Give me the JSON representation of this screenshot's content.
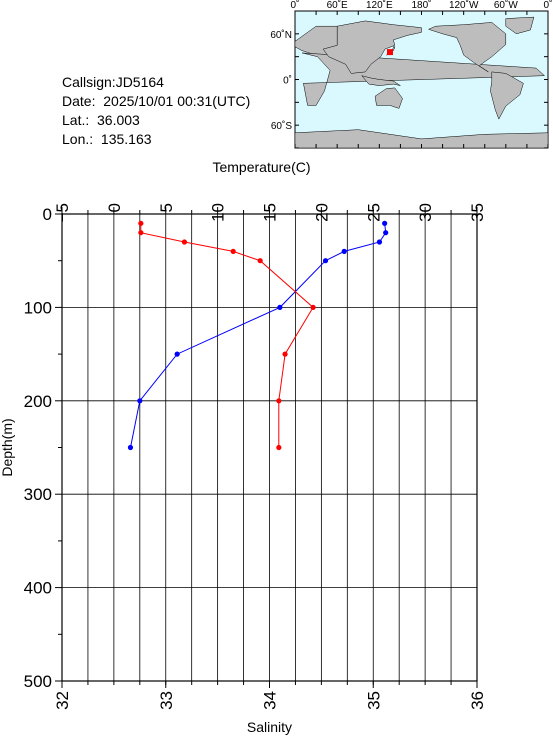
{
  "station": {
    "callsign": "Callsign:JD5164",
    "date": "Date:  2025/10/01 00:31(UTC)",
    "lat": "Lat.:  36.003",
    "lon": "Lon.:  135.163"
  },
  "map": {
    "top_labels": [
      "0˚",
      "60˚E",
      "120˚E",
      "180˚",
      "120˚W",
      "60˚W",
      "0˚"
    ],
    "side_labels": [
      "60˚N",
      "0˚",
      "60˚S"
    ],
    "ocean_color": "#d9f9ff",
    "land_color": "#bdbdbd",
    "marker_color": "#ff0000",
    "marker": {
      "lat": 36.003,
      "lon": 135.163
    }
  },
  "chart_data": {
    "type": "line",
    "ylabel": "Depth(m)",
    "ylim": [
      0,
      500
    ],
    "y_ticks": [
      "0",
      "100",
      "200",
      "300",
      "400",
      "500"
    ],
    "y_reversed": true,
    "x_top": {
      "label": "Temperature(C)",
      "lim": [
        -5,
        35
      ],
      "ticks": [
        "−5",
        "0",
        "5",
        "10",
        "15",
        "20",
        "25",
        "30",
        "35"
      ]
    },
    "x_bottom": {
      "label": "Salinity",
      "lim": [
        32,
        36
      ],
      "ticks": [
        "32",
        "33",
        "34",
        "35",
        "36"
      ]
    },
    "grid": true,
    "series": [
      {
        "axis": "top",
        "color": "#0000ff",
        "depth": [
          10,
          20,
          30,
          40,
          50,
          100,
          150,
          200,
          250
        ],
        "values": [
          26.1,
          26.2,
          25.6,
          22.2,
          20.4,
          16.0,
          6.1,
          2.5,
          1.6
        ]
      },
      {
        "axis": "bottom",
        "color": "#ff0000",
        "depth": [
          10,
          20,
          30,
          40,
          50,
          100,
          150,
          200,
          250
        ],
        "values": [
          32.76,
          32.76,
          33.18,
          33.65,
          33.91,
          34.42,
          34.15,
          34.09,
          34.09
        ]
      }
    ]
  }
}
